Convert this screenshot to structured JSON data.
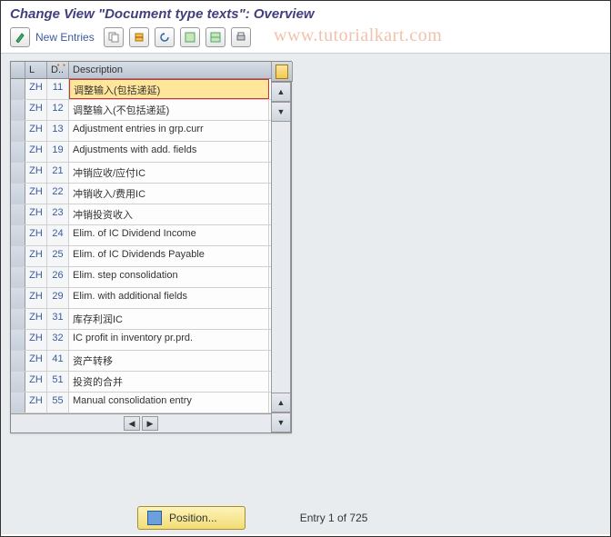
{
  "title": "Change View \"Document type texts\": Overview",
  "watermark": "www.tutorialkart.com",
  "toolbar": {
    "new_entries_label": "New Entries",
    "icons": [
      "✎",
      "⧉",
      "⎘",
      "↺",
      "▥",
      "▥",
      "⎙"
    ]
  },
  "grid": {
    "headers": {
      "lang": "L",
      "doc": "D..",
      "desc": "Description"
    },
    "rows": [
      {
        "lang": "ZH",
        "doc": "11",
        "desc": "调整输入(包括递延)",
        "active": true
      },
      {
        "lang": "ZH",
        "doc": "12",
        "desc": "调整输入(不包括递延)"
      },
      {
        "lang": "ZH",
        "doc": "13",
        "desc": "Adjustment entries in grp.curr"
      },
      {
        "lang": "ZH",
        "doc": "19",
        "desc": "Adjustments with add. fields"
      },
      {
        "lang": "ZH",
        "doc": "21",
        "desc": "冲销应收/应付IC"
      },
      {
        "lang": "ZH",
        "doc": "22",
        "desc": "冲销收入/费用IC"
      },
      {
        "lang": "ZH",
        "doc": "23",
        "desc": "冲销投资收入"
      },
      {
        "lang": "ZH",
        "doc": "24",
        "desc": "Elim. of IC Dividend Income"
      },
      {
        "lang": "ZH",
        "doc": "25",
        "desc": "Elim. of IC Dividends Payable"
      },
      {
        "lang": "ZH",
        "doc": "26",
        "desc": "Elim. step consolidation"
      },
      {
        "lang": "ZH",
        "doc": "29",
        "desc": "Elim. with additional fields"
      },
      {
        "lang": "ZH",
        "doc": "31",
        "desc": "库存利润IC"
      },
      {
        "lang": "ZH",
        "doc": "32",
        "desc": "IC profit in inventory pr.prd."
      },
      {
        "lang": "ZH",
        "doc": "41",
        "desc": "资产转移"
      },
      {
        "lang": "ZH",
        "doc": "51",
        "desc": "投资的合并"
      },
      {
        "lang": "ZH",
        "doc": "55",
        "desc": "Manual consolidation entry"
      }
    ]
  },
  "footer": {
    "position_label": "Position...",
    "entry_text": "Entry 1 of 725"
  },
  "colors": {
    "title_color": "#423f7d",
    "link_color": "#3a5a9c",
    "header_grad_top": "#d6dde6",
    "header_grad_bottom": "#bcc5d2",
    "active_bg": "#ffe69a",
    "active_border": "#cc3333",
    "pos_btn_top": "#fdf3b8",
    "pos_btn_bottom": "#f3dd77",
    "body_bg": "#e9ecef"
  }
}
